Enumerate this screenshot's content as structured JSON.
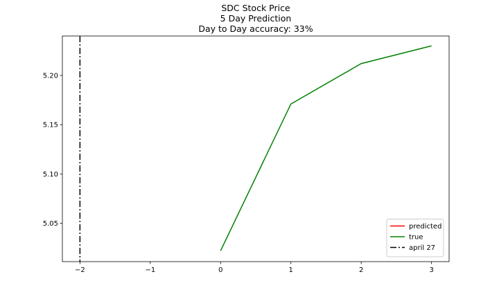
{
  "chart_data": {
    "type": "line",
    "title_lines": [
      "SDC Stock Price",
      "5 Day Prediction",
      "Day to Day accuracy: 33%"
    ],
    "xlabel": "",
    "ylabel": "",
    "xlim": [
      -2.25,
      3.25
    ],
    "ylim": [
      5.011,
      5.24
    ],
    "xticks": [
      -2,
      -1,
      0,
      1,
      2,
      3
    ],
    "xtick_labels": [
      "−2",
      "−1",
      "0",
      "1",
      "2",
      "3"
    ],
    "yticks": [
      5.05,
      5.1,
      5.15,
      5.2
    ],
    "ytick_labels": [
      "5.05",
      "5.10",
      "5.15",
      "5.20"
    ],
    "grid": false,
    "legend_position": "lower-right",
    "series": [
      {
        "name": "predicted",
        "color": "#ff0000",
        "style": "solid",
        "x": [],
        "y": []
      },
      {
        "name": "true",
        "color": "#008000",
        "style": "solid",
        "x": [
          0,
          1,
          2,
          3
        ],
        "y": [
          5.022,
          5.171,
          5.212,
          5.23
        ]
      }
    ],
    "vlines": [
      {
        "name": "april 27",
        "x": -2,
        "color": "#000000",
        "style": "dashdot"
      }
    ]
  }
}
